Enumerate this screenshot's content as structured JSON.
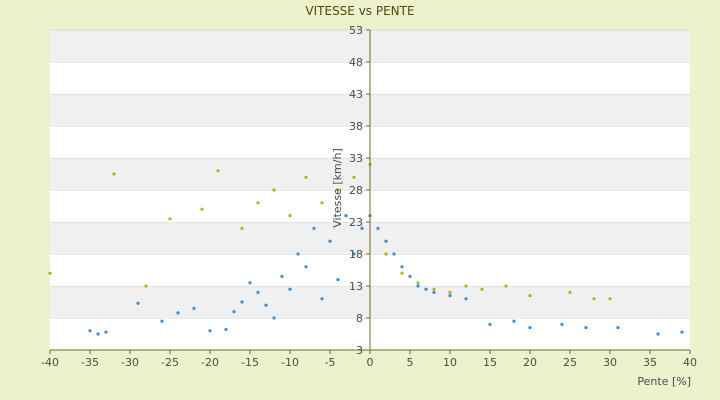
{
  "chart_data": {
    "type": "scatter",
    "title": "VITESSE vs PENTE",
    "xlabel": "Pente [%]",
    "ylabel": "Vitesse [km/h]",
    "xlim": [
      -40,
      40
    ],
    "ylim": [
      3,
      53
    ],
    "x_ticks": [
      "-40",
      "-35",
      "-30",
      "-25",
      "-20",
      "-15",
      "-10",
      "-5",
      "0",
      "5",
      "10",
      "15",
      "20",
      "25",
      "30",
      "35",
      "40"
    ],
    "y_ticks": [
      "3",
      "8",
      "13",
      "18",
      "23",
      "28",
      "33",
      "38",
      "43",
      "48",
      "53"
    ],
    "grid": "horizontal, alternating bands",
    "legend": "none",
    "colors": {
      "background": "#eef2cc",
      "plot_band_light": "#ffffff",
      "plot_band_dark": "#f0f0f0",
      "series_a": "#3a8fd6",
      "series_b": "#b3b316",
      "axis": "#6a6a2a"
    },
    "series": [
      {
        "color": "#3a8fd6",
        "points": [
          [
            -35,
            6.0
          ],
          [
            -34,
            5.5
          ],
          [
            -33,
            5.8
          ],
          [
            -29,
            10.3
          ],
          [
            -26,
            7.5
          ],
          [
            -24,
            8.8
          ],
          [
            -22,
            9.5
          ],
          [
            -20,
            6.0
          ],
          [
            -18,
            6.2
          ],
          [
            -17,
            9.0
          ],
          [
            -16,
            10.5
          ],
          [
            -15,
            13.5
          ],
          [
            -14,
            12.0
          ],
          [
            -13,
            10.0
          ],
          [
            -12,
            8.0
          ],
          [
            -11,
            14.5
          ],
          [
            -10,
            12.5
          ],
          [
            -9,
            18.0
          ],
          [
            -8,
            16.0
          ],
          [
            -7,
            22.0
          ],
          [
            -6,
            11.0
          ],
          [
            -5,
            20.0
          ],
          [
            -4,
            14.0
          ],
          [
            -3,
            24.0
          ],
          [
            -2,
            18.0
          ],
          [
            -1,
            22.0
          ],
          [
            0,
            24.0
          ],
          [
            1,
            22.0
          ],
          [
            2,
            20.0
          ],
          [
            3,
            18.0
          ],
          [
            4,
            16.0
          ],
          [
            5,
            14.5
          ],
          [
            6,
            13.0
          ],
          [
            7,
            12.5
          ],
          [
            8,
            12.0
          ],
          [
            10,
            11.5
          ],
          [
            12,
            11.0
          ],
          [
            15,
            7.0
          ],
          [
            18,
            7.5
          ],
          [
            20,
            6.5
          ],
          [
            24,
            7.0
          ],
          [
            27,
            6.5
          ],
          [
            31,
            6.5
          ],
          [
            36,
            5.5
          ],
          [
            39,
            5.8
          ]
        ]
      },
      {
        "color": "#b3b316",
        "points": [
          [
            -40,
            15.0
          ],
          [
            -32,
            30.5
          ],
          [
            -28,
            13.0
          ],
          [
            -25,
            23.5
          ],
          [
            -21,
            25.0
          ],
          [
            -19,
            31.0
          ],
          [
            -16,
            22.0
          ],
          [
            -14,
            26.0
          ],
          [
            -12,
            28.0
          ],
          [
            -10,
            24.0
          ],
          [
            -8,
            30.0
          ],
          [
            -6,
            26.0
          ],
          [
            -4,
            28.0
          ],
          [
            -2,
            30.0
          ],
          [
            0,
            32.0
          ],
          [
            2,
            18.0
          ],
          [
            4,
            15.0
          ],
          [
            6,
            13.5
          ],
          [
            8,
            12.5
          ],
          [
            10,
            12.0
          ],
          [
            12,
            13.0
          ],
          [
            14,
            12.5
          ],
          [
            17,
            13.0
          ],
          [
            20,
            11.5
          ],
          [
            25,
            12.0
          ],
          [
            28,
            11.0
          ],
          [
            30,
            11.0
          ]
        ]
      }
    ]
  }
}
